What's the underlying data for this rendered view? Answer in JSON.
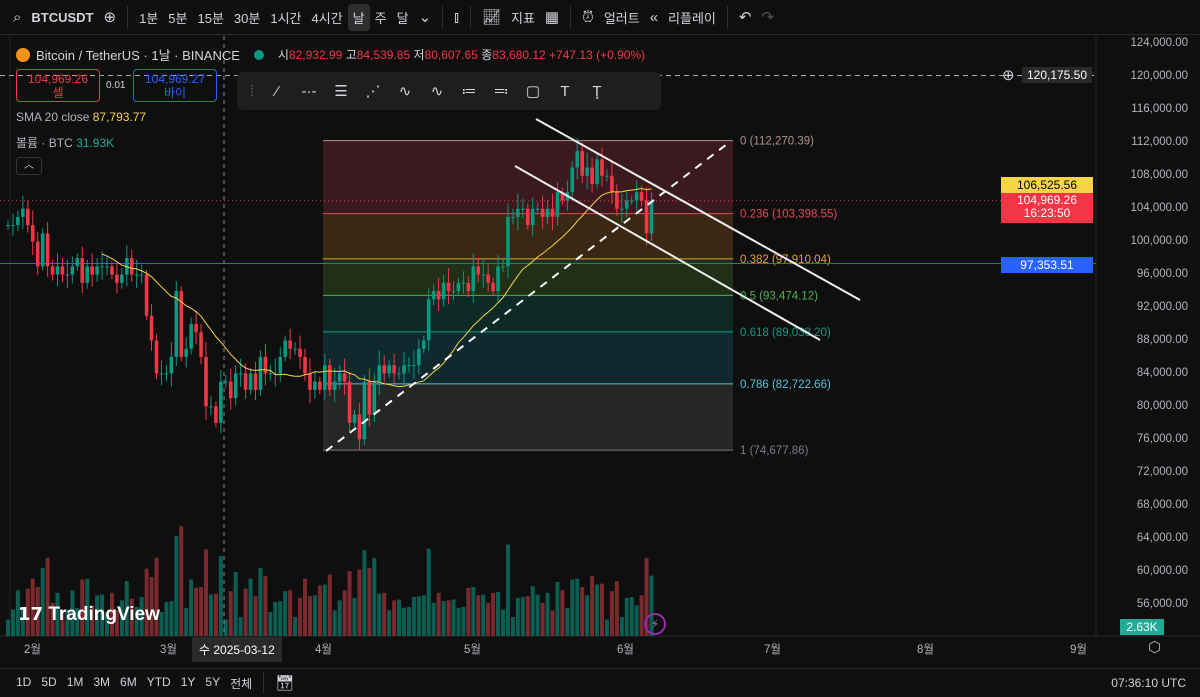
{
  "toolbar": {
    "symbol": "BTCUSDT",
    "intervals": [
      "1분",
      "5분",
      "15분",
      "30분",
      "1시간",
      "4시간",
      "날",
      "주",
      "달"
    ],
    "active_interval": "날",
    "indicators": "지표",
    "alert": "얼러트",
    "replay": "리플레이"
  },
  "legend": {
    "title": "Bitcoin / TetherUS · 1날 · BINANCE",
    "o_label": "시",
    "o": "82,932.99",
    "h_label": "고",
    "h": "84,539.85",
    "l_label": "저",
    "l": "80,607.65",
    "c_label": "종",
    "c": "83,680.12",
    "change": "+747.13 (+0.90%)"
  },
  "trade": {
    "sell_price": "104,969.26",
    "sell_label": "셀",
    "spread": "0.01",
    "buy_price": "104,969.27",
    "buy_label": "바이"
  },
  "indicators": {
    "sma_label": "SMA 20 close",
    "sma_value": "87,793.77",
    "volume_label": "볼륨 · BTC",
    "volume_value": "31.93K"
  },
  "colors": {
    "up": "#089981",
    "down": "#f23645",
    "sma": "#f5d547",
    "blue_line": "#2962ff"
  },
  "yaxis": [
    "124,000.00",
    "120,000.00",
    "116,000.00",
    "112,000.00",
    "108,000.00",
    "104,000.00",
    "100,000.00",
    "96,000.00",
    "92,000.00",
    "88,000.00",
    "84,000.00",
    "80,000.00",
    "76,000.00",
    "72,000.00",
    "68,000.00",
    "64,000.00",
    "60,000.00",
    "56,000.00"
  ],
  "price_tags": {
    "crosshair": "120,175.50",
    "sma": "106,525.56",
    "last": "104,969.26",
    "countdown": "16:23:50",
    "blue": "97,353.51",
    "volume": "2.63K"
  },
  "xaxis": [
    "2월",
    "3월",
    "4월",
    "5월",
    "6월",
    "7월",
    "8월",
    "9월"
  ],
  "crosshair_date": "수 2025-03-12",
  "fib": [
    {
      "label": "0 (112,270.39)",
      "level": 0,
      "price": 112270.39,
      "color": "#b09090"
    },
    {
      "label": "0.236 (103,398.55)",
      "level": 0.236,
      "price": 103398.55,
      "color": "#e04a58"
    },
    {
      "label": "0.382 (97,910.04)",
      "level": 0.382,
      "price": 97910.04,
      "color": "#e0a030"
    },
    {
      "label": "0.5 (93,474.12)",
      "level": 0.5,
      "price": 93474.12,
      "color": "#4caf50"
    },
    {
      "label": "0.618 (89,038.20)",
      "level": 0.618,
      "price": 89038.2,
      "color": "#159a82"
    },
    {
      "label": "0.786 (82,722.66)",
      "level": 0.786,
      "price": 82722.66,
      "color": "#56c4d8"
    },
    {
      "label": "1 (74,677.86)",
      "level": 1,
      "price": 74677.86,
      "color": "#787b86"
    }
  ],
  "ranges": [
    "1D",
    "5D",
    "1M",
    "3M",
    "6M",
    "YTD",
    "1Y",
    "5Y",
    "전체"
  ],
  "clock": "07:36:10 UTC",
  "brand": "TradingView",
  "closes_k": [
    102,
    102,
    103,
    104,
    102,
    100,
    97,
    101,
    97,
    96,
    97,
    96,
    96,
    97,
    98,
    95,
    97,
    96,
    97,
    97,
    97,
    96,
    95,
    96,
    98,
    96,
    96,
    96,
    91,
    88,
    84,
    84,
    84,
    86,
    94,
    86,
    87,
    90,
    89,
    86,
    80,
    80,
    78,
    83,
    83,
    81,
    84,
    84,
    82,
    84,
    82,
    86,
    84,
    84,
    84,
    86,
    88,
    87,
    87,
    86,
    84,
    82,
    83,
    82,
    85,
    82,
    83,
    84,
    83,
    78,
    79,
    76,
    83,
    79,
    83,
    85,
    84,
    85,
    84,
    84,
    85,
    85,
    85,
    87,
    88,
    93,
    94,
    93,
    95,
    94,
    94,
    95,
    95,
    94,
    97,
    96,
    96,
    95,
    94,
    97,
    97,
    103,
    103,
    104,
    104,
    102,
    104,
    104,
    103,
    104,
    103,
    106,
    105,
    106,
    109,
    111,
    108,
    109,
    107,
    110,
    108,
    108,
    106,
    104,
    104,
    105,
    105,
    106,
    105,
    101,
    104.97
  ]
}
